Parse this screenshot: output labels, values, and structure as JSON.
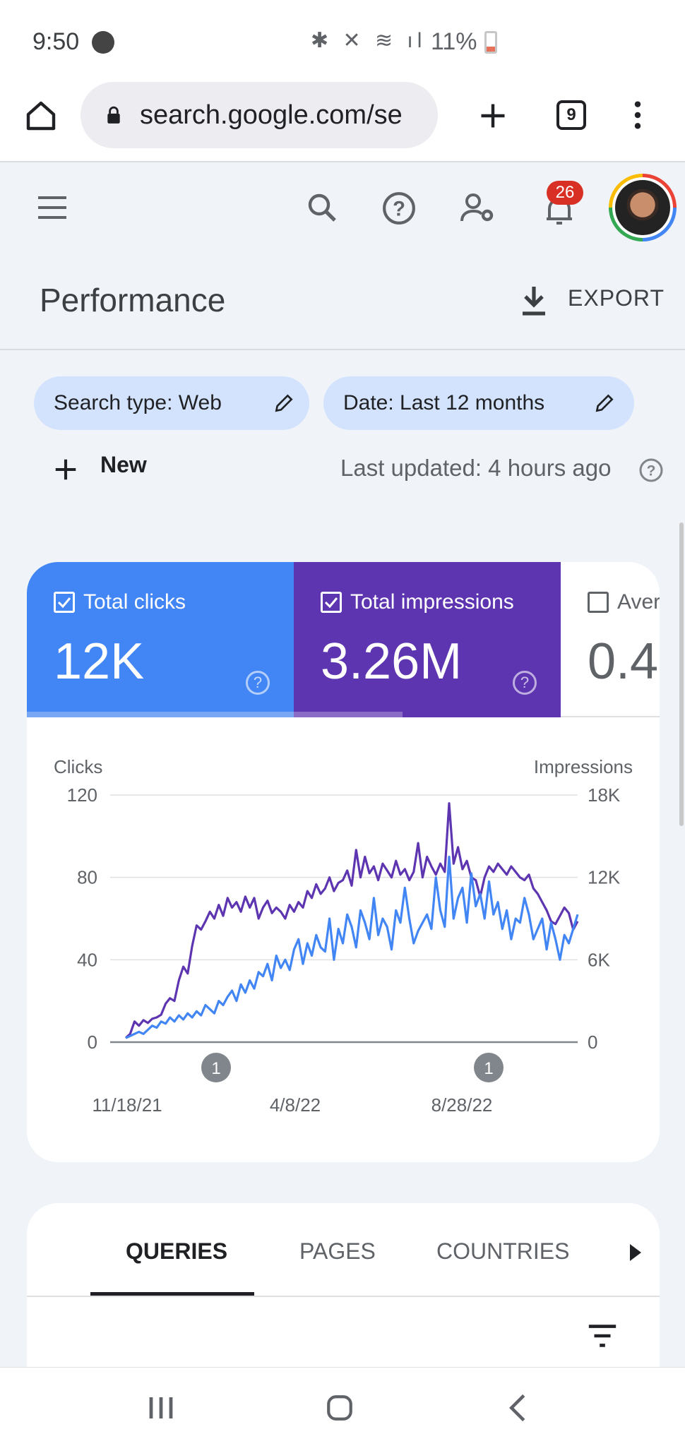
{
  "status_bar": {
    "time": "9:50",
    "battery": "11%"
  },
  "browser": {
    "url": "search.google.com/se",
    "tab_count": "9"
  },
  "header": {
    "notifications": "26"
  },
  "page": {
    "title": "Performance",
    "export_label": "EXPORT"
  },
  "filters": [
    {
      "label": "Search type: Web"
    },
    {
      "label": "Date: Last 12 months"
    }
  ],
  "toolbar": {
    "new_label": "New",
    "last_updated": "Last updated: 4 hours ago"
  },
  "metrics": [
    {
      "label": "Total clicks",
      "value": "12K",
      "checked": true,
      "color": "#4285f4"
    },
    {
      "label": "Total impressions",
      "value": "3.26M",
      "checked": true,
      "color": "#5e35b1"
    },
    {
      "label": "Aver",
      "value": "0.4",
      "checked": false
    }
  ],
  "chart_data": {
    "type": "line",
    "left_axis_label": "Clicks",
    "right_axis_label": "Impressions",
    "left_ticks": [
      "120",
      "80",
      "40",
      "0"
    ],
    "right_ticks": [
      "18K",
      "12K",
      "6K",
      "0"
    ],
    "x_ticks": [
      "11/18/21",
      "4/8/22",
      "8/28/22"
    ],
    "left_ylim": [
      0,
      120
    ],
    "right_ylim": [
      0,
      18000
    ],
    "annotations": [
      "1",
      "1"
    ],
    "series": [
      {
        "name": "Clicks",
        "axis": "left",
        "color": "#4285f4",
        "values": [
          2,
          3,
          4,
          5,
          4,
          6,
          8,
          7,
          10,
          9,
          12,
          10,
          13,
          11,
          14,
          12,
          15,
          13,
          18,
          16,
          14,
          20,
          18,
          22,
          25,
          20,
          28,
          24,
          30,
          26,
          34,
          32,
          38,
          30,
          42,
          36,
          40,
          35,
          45,
          50,
          38,
          48,
          42,
          52,
          46,
          44,
          60,
          40,
          55,
          48,
          62,
          56,
          46,
          64,
          58,
          50,
          70,
          52,
          60,
          56,
          45,
          64,
          58,
          75,
          60,
          48,
          54,
          58,
          62,
          55,
          80,
          64,
          56,
          90,
          60,
          70,
          75,
          58,
          82,
          66,
          72,
          60,
          78,
          62,
          68,
          55,
          64,
          50,
          60,
          58,
          70,
          62,
          50,
          55,
          60,
          45,
          58,
          50,
          40,
          52,
          48,
          55,
          62
        ]
      },
      {
        "name": "Impressions",
        "axis": "right",
        "color": "#5e35b1",
        "values": [
          300,
          600,
          1500,
          1200,
          1600,
          1400,
          1700,
          1800,
          2000,
          2800,
          3200,
          3000,
          4500,
          5500,
          5000,
          7000,
          8500,
          8200,
          8800,
          9500,
          9000,
          10000,
          9200,
          10500,
          9800,
          10200,
          9500,
          10600,
          9800,
          10500,
          9000,
          9800,
          10300,
          9400,
          9800,
          9500,
          9000,
          10000,
          9500,
          10200,
          9800,
          11000,
          10500,
          11500,
          10800,
          11200,
          12000,
          11000,
          11600,
          11800,
          12500,
          11400,
          14000,
          12000,
          13500,
          12300,
          12800,
          11800,
          13000,
          12500,
          12000,
          13200,
          12200,
          12600,
          11800,
          12400,
          14500,
          12000,
          13500,
          12800,
          12200,
          13000,
          12400,
          17400,
          13000,
          14200,
          12600,
          13200,
          12000,
          11800,
          10600,
          12000,
          12800,
          12400,
          13000,
          12600,
          12200,
          12800,
          12400,
          12000,
          11800,
          12200,
          11200,
          10800,
          10200,
          9600,
          8800,
          8600,
          9200,
          9800,
          9400,
          8200,
          8800
        ]
      }
    ]
  },
  "tabs": [
    {
      "label": "QUERIES"
    },
    {
      "label": "PAGES"
    },
    {
      "label": "COUNTRIES"
    }
  ],
  "icons": [
    "home-icon",
    "lock-icon",
    "plus-icon",
    "tabs-icon",
    "more-icon",
    "menu-icon",
    "search-icon",
    "help-icon",
    "manage-users-icon",
    "bell-icon",
    "download-icon",
    "edit-icon",
    "filter-icon"
  ]
}
